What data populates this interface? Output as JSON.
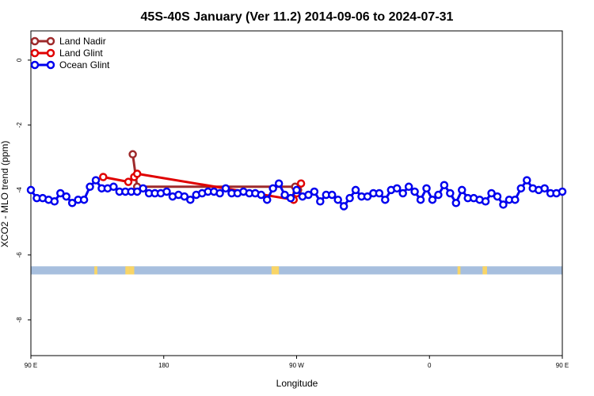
{
  "chart_data": {
    "type": "line",
    "title": "45S-40S January (Ver 11.2)   2014-09-06 to 2024-07-31",
    "xlabel": "Longitude",
    "ylabel": "XCO2 - MLO trend (ppm)",
    "xlim": [
      90,
      450
    ],
    "ylim": [
      -9.1,
      0.9
    ],
    "x_ticks": [
      {
        "value": 90,
        "label": "90 E"
      },
      {
        "value": 180,
        "label": "180"
      },
      {
        "value": 270,
        "label": "90 W"
      },
      {
        "value": 360,
        "label": "0"
      },
      {
        "value": 450,
        "label": "90 E"
      },
      {
        "value": 540,
        "label": "180"
      }
    ],
    "y_ticks": [
      {
        "value": 0,
        "label": "0"
      },
      {
        "value": -2,
        "label": "-2"
      },
      {
        "value": -4,
        "label": "-4"
      },
      {
        "value": -6,
        "label": "-6"
      },
      {
        "value": -8,
        "label": "-8"
      }
    ],
    "legend_position": "top-left",
    "series": [
      {
        "name": "Land Nadir",
        "color": "#9e2a2b",
        "points": [
          [
            159,
            -2.9
          ],
          [
            162,
            -3.9
          ],
          [
            269,
            -3.9
          ],
          [
            271,
            -4.0
          ]
        ]
      },
      {
        "name": "Land Glint",
        "color": "#e00000",
        "points": [
          [
            139,
            -3.6
          ],
          [
            156,
            -3.75
          ],
          [
            160,
            -3.6
          ],
          [
            162,
            -3.5
          ],
          [
            268,
            -4.3
          ],
          [
            270,
            -4.1
          ],
          [
            273,
            -3.8
          ]
        ]
      },
      {
        "name": "Ocean Glint",
        "color": "#0000ee",
        "points": [
          [
            90,
            -4.0
          ],
          [
            94,
            -4.25
          ],
          [
            98,
            -4.25
          ],
          [
            102,
            -4.3
          ],
          [
            106,
            -4.35
          ],
          [
            110,
            -4.1
          ],
          [
            114,
            -4.2
          ],
          [
            118,
            -4.4
          ],
          [
            122,
            -4.3
          ],
          [
            126,
            -4.3
          ],
          [
            130,
            -3.9
          ],
          [
            134,
            -3.7
          ],
          [
            138,
            -3.95
          ],
          [
            142,
            -3.95
          ],
          [
            146,
            -3.9
          ],
          [
            150,
            -4.05
          ],
          [
            154,
            -4.05
          ],
          [
            158,
            -4.05
          ],
          [
            162,
            -4.05
          ],
          [
            166,
            -3.95
          ],
          [
            170,
            -4.1
          ],
          [
            174,
            -4.1
          ],
          [
            178,
            -4.1
          ],
          [
            182,
            -4.05
          ],
          [
            186,
            -4.2
          ],
          [
            190,
            -4.15
          ],
          [
            194,
            -4.2
          ],
          [
            198,
            -4.3
          ],
          [
            202,
            -4.15
          ],
          [
            206,
            -4.1
          ],
          [
            210,
            -4.05
          ],
          [
            214,
            -4.05
          ],
          [
            218,
            -4.1
          ],
          [
            222,
            -3.95
          ],
          [
            226,
            -4.1
          ],
          [
            230,
            -4.1
          ],
          [
            234,
            -4.05
          ],
          [
            238,
            -4.1
          ],
          [
            242,
            -4.1
          ],
          [
            246,
            -4.15
          ],
          [
            250,
            -4.3
          ],
          [
            254,
            -3.95
          ],
          [
            258,
            -3.8
          ],
          [
            262,
            -4.15
          ],
          [
            266,
            -4.25
          ],
          [
            270,
            -4.0
          ],
          [
            274,
            -4.2
          ],
          [
            278,
            -4.15
          ],
          [
            282,
            -4.05
          ],
          [
            286,
            -4.35
          ],
          [
            290,
            -4.15
          ],
          [
            294,
            -4.15
          ],
          [
            298,
            -4.3
          ],
          [
            302,
            -4.5
          ],
          [
            306,
            -4.25
          ],
          [
            310,
            -4.0
          ],
          [
            314,
            -4.2
          ],
          [
            318,
            -4.2
          ],
          [
            322,
            -4.1
          ],
          [
            326,
            -4.1
          ],
          [
            330,
            -4.3
          ],
          [
            334,
            -4.0
          ],
          [
            338,
            -3.95
          ],
          [
            342,
            -4.1
          ],
          [
            346,
            -3.9
          ],
          [
            350,
            -4.05
          ],
          [
            354,
            -4.3
          ],
          [
            358,
            -3.95
          ],
          [
            362,
            -4.3
          ],
          [
            366,
            -4.15
          ],
          [
            370,
            -3.85
          ],
          [
            374,
            -4.1
          ],
          [
            378,
            -4.4
          ],
          [
            382,
            -4.0
          ],
          [
            386,
            -4.25
          ],
          [
            390,
            -4.25
          ],
          [
            394,
            -4.3
          ],
          [
            398,
            -4.35
          ],
          [
            402,
            -4.1
          ],
          [
            406,
            -4.2
          ],
          [
            410,
            -4.45
          ],
          [
            414,
            -4.3
          ],
          [
            418,
            -4.3
          ],
          [
            422,
            -3.95
          ],
          [
            426,
            -3.7
          ],
          [
            430,
            -3.95
          ],
          [
            434,
            -4.0
          ],
          [
            438,
            -3.95
          ],
          [
            442,
            -4.1
          ],
          [
            446,
            -4.1
          ],
          [
            450,
            -4.05
          ]
        ]
      }
    ],
    "land_ocean_band": {
      "y_from": -6.35,
      "y_to": -6.6,
      "ocean_color": "#a7bfde",
      "land_color": "#f9d566",
      "land_segments": [
        [
          133,
          135
        ],
        [
          154,
          157
        ],
        [
          157,
          160
        ],
        [
          253,
          258
        ],
        [
          379,
          381
        ],
        [
          396,
          399
        ]
      ]
    }
  }
}
